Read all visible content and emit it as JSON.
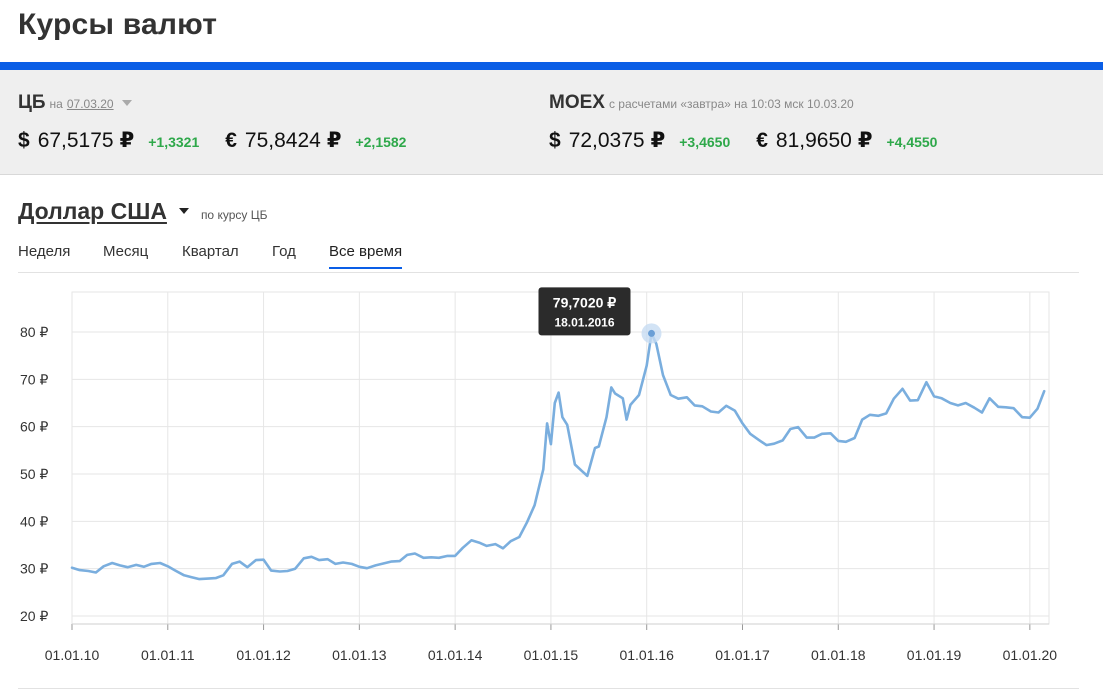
{
  "page": {
    "title": "Курсы валют"
  },
  "cb": {
    "name": "ЦБ",
    "prefix": "на",
    "date": "07.03.20",
    "usd": {
      "symbol": "$",
      "value": "67,5175",
      "currency": "₽",
      "change": "+1,3321"
    },
    "eur": {
      "symbol": "€",
      "value": "75,8424",
      "currency": "₽",
      "change": "+2,1582"
    }
  },
  "moex": {
    "name": "MOEX",
    "note": "с расчетами «завтра» на 10:03 мск 10.03.20",
    "usd": {
      "symbol": "$",
      "value": "72,0375",
      "currency": "₽",
      "change": "+3,4650"
    },
    "eur": {
      "symbol": "€",
      "value": "81,9650",
      "currency": "₽",
      "change": "+4,4550"
    }
  },
  "selector": {
    "currency": "Доллар США",
    "basis": "по курсу ЦБ"
  },
  "tabs": [
    {
      "label": "Неделя",
      "active": false
    },
    {
      "label": "Месяц",
      "active": false
    },
    {
      "label": "Квартал",
      "active": false
    },
    {
      "label": "Год",
      "active": false
    },
    {
      "label": "Все время",
      "active": true
    }
  ],
  "colors": {
    "accent": "#0a5ee6",
    "positive": "#2ea84a",
    "line": "#7aaede",
    "grid": "#e6e6e6"
  },
  "chart_data": {
    "type": "line",
    "y_ticks": [
      "20 ₽",
      "30 ₽",
      "40 ₽",
      "50 ₽",
      "60 ₽",
      "70 ₽",
      "80 ₽"
    ],
    "x_ticks": [
      "01.01.10",
      "01.01.11",
      "01.01.12",
      "01.01.13",
      "01.01.14",
      "01.01.15",
      "01.01.16",
      "01.01.17",
      "01.01.18",
      "01.01.19",
      "01.01.20"
    ],
    "ylim": [
      20,
      82
    ],
    "grid": true,
    "tooltip": {
      "value": "79,7020 ₽",
      "date": "18.01.2016",
      "x": 2016.05,
      "y": 79.7
    },
    "series": [
      {
        "values": [
          [
            2010.0,
            30.2
          ],
          [
            2010.08,
            29.7
          ],
          [
            2010.17,
            29.5
          ],
          [
            2010.25,
            29.2
          ],
          [
            2010.33,
            30.5
          ],
          [
            2010.42,
            31.2
          ],
          [
            2010.5,
            30.7
          ],
          [
            2010.58,
            30.3
          ],
          [
            2010.67,
            30.8
          ],
          [
            2010.75,
            30.4
          ],
          [
            2010.83,
            31.0
          ],
          [
            2010.92,
            31.2
          ],
          [
            2011.0,
            30.5
          ],
          [
            2011.08,
            29.6
          ],
          [
            2011.17,
            28.6
          ],
          [
            2011.25,
            28.2
          ],
          [
            2011.33,
            27.8
          ],
          [
            2011.42,
            27.9
          ],
          [
            2011.5,
            28.0
          ],
          [
            2011.58,
            28.6
          ],
          [
            2011.67,
            31.0
          ],
          [
            2011.75,
            31.5
          ],
          [
            2011.83,
            30.3
          ],
          [
            2011.92,
            31.8
          ],
          [
            2012.0,
            31.9
          ],
          [
            2012.08,
            29.6
          ],
          [
            2012.17,
            29.4
          ],
          [
            2012.25,
            29.5
          ],
          [
            2012.33,
            30.0
          ],
          [
            2012.42,
            32.2
          ],
          [
            2012.5,
            32.5
          ],
          [
            2012.58,
            31.8
          ],
          [
            2012.67,
            32.0
          ],
          [
            2012.75,
            31.0
          ],
          [
            2012.83,
            31.3
          ],
          [
            2012.92,
            31.0
          ],
          [
            2013.0,
            30.4
          ],
          [
            2013.08,
            30.1
          ],
          [
            2013.17,
            30.7
          ],
          [
            2013.25,
            31.1
          ],
          [
            2013.33,
            31.5
          ],
          [
            2013.42,
            31.6
          ],
          [
            2013.5,
            32.9
          ],
          [
            2013.58,
            33.2
          ],
          [
            2013.67,
            32.3
          ],
          [
            2013.75,
            32.4
          ],
          [
            2013.83,
            32.3
          ],
          [
            2013.92,
            32.7
          ],
          [
            2014.0,
            32.7
          ],
          [
            2014.08,
            34.4
          ],
          [
            2014.17,
            36.0
          ],
          [
            2014.25,
            35.5
          ],
          [
            2014.33,
            34.8
          ],
          [
            2014.42,
            35.2
          ],
          [
            2014.5,
            34.3
          ],
          [
            2014.58,
            35.8
          ],
          [
            2014.67,
            36.7
          ],
          [
            2014.75,
            39.8
          ],
          [
            2014.83,
            43.4
          ],
          [
            2014.92,
            51.0
          ],
          [
            2014.96,
            60.7
          ],
          [
            2015.0,
            56.3
          ],
          [
            2015.04,
            65.0
          ],
          [
            2015.08,
            67.2
          ],
          [
            2015.12,
            62.0
          ],
          [
            2015.17,
            60.4
          ],
          [
            2015.25,
            52.0
          ],
          [
            2015.33,
            50.5
          ],
          [
            2015.38,
            49.6
          ],
          [
            2015.46,
            55.5
          ],
          [
            2015.5,
            55.8
          ],
          [
            2015.58,
            62.0
          ],
          [
            2015.63,
            68.3
          ],
          [
            2015.67,
            67.0
          ],
          [
            2015.75,
            66.0
          ],
          [
            2015.79,
            61.5
          ],
          [
            2015.83,
            64.6
          ],
          [
            2015.92,
            66.7
          ],
          [
            2016.0,
            72.9
          ],
          [
            2016.05,
            79.7
          ],
          [
            2016.1,
            77.5
          ],
          [
            2016.17,
            70.9
          ],
          [
            2016.25,
            66.7
          ],
          [
            2016.33,
            65.9
          ],
          [
            2016.42,
            66.2
          ],
          [
            2016.5,
            64.5
          ],
          [
            2016.58,
            64.3
          ],
          [
            2016.67,
            63.2
          ],
          [
            2016.75,
            63.0
          ],
          [
            2016.83,
            64.4
          ],
          [
            2016.92,
            63.4
          ],
          [
            2017.0,
            60.7
          ],
          [
            2017.08,
            58.5
          ],
          [
            2017.17,
            57.2
          ],
          [
            2017.25,
            56.1
          ],
          [
            2017.33,
            56.4
          ],
          [
            2017.42,
            57.1
          ],
          [
            2017.5,
            59.5
          ],
          [
            2017.58,
            59.9
          ],
          [
            2017.67,
            57.7
          ],
          [
            2017.75,
            57.7
          ],
          [
            2017.83,
            58.5
          ],
          [
            2017.92,
            58.6
          ],
          [
            2018.0,
            57.0
          ],
          [
            2018.08,
            56.8
          ],
          [
            2018.17,
            57.6
          ],
          [
            2018.25,
            61.5
          ],
          [
            2018.33,
            62.5
          ],
          [
            2018.42,
            62.3
          ],
          [
            2018.5,
            62.8
          ],
          [
            2018.58,
            65.9
          ],
          [
            2018.67,
            68.0
          ],
          [
            2018.75,
            65.5
          ],
          [
            2018.83,
            65.6
          ],
          [
            2018.92,
            69.4
          ],
          [
            2019.0,
            66.4
          ],
          [
            2019.08,
            66.0
          ],
          [
            2019.17,
            65.0
          ],
          [
            2019.25,
            64.5
          ],
          [
            2019.33,
            65.0
          ],
          [
            2019.42,
            64.0
          ],
          [
            2019.5,
            63.0
          ],
          [
            2019.58,
            66.0
          ],
          [
            2019.67,
            64.2
          ],
          [
            2019.75,
            64.1
          ],
          [
            2019.83,
            63.9
          ],
          [
            2019.92,
            62.0
          ],
          [
            2020.0,
            61.9
          ],
          [
            2020.08,
            63.8
          ],
          [
            2020.15,
            67.5
          ]
        ]
      }
    ]
  }
}
